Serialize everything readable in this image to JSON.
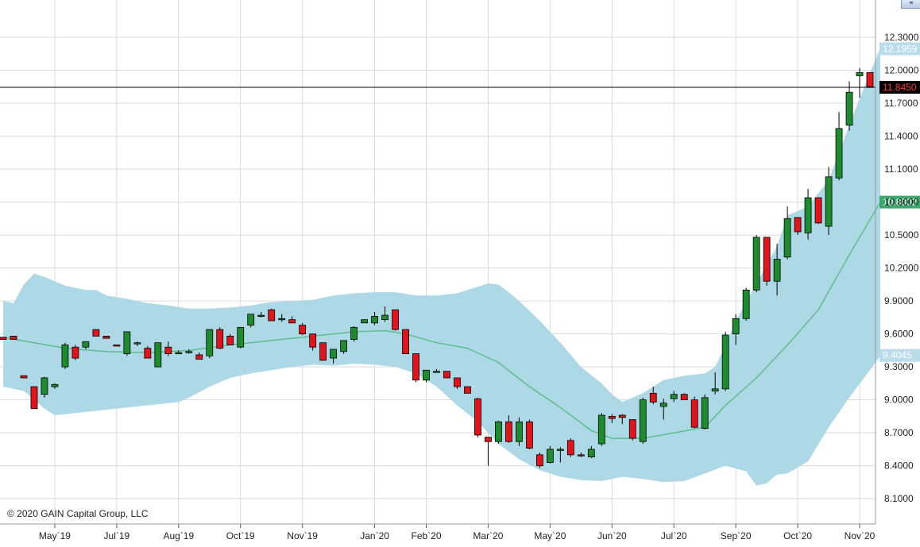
{
  "copyright": "© 2020 GAIN Capital Group, LLC",
  "nav_button": {
    "label": "«",
    "icon": "double-chevron-left-icon"
  },
  "colors": {
    "bull": "#1e8c2e",
    "bear": "#e3121b",
    "band_fill": "#add8e6",
    "middle_line": "#5cbf8a",
    "grid": "#d9d9d9",
    "last_price_line": "#000000"
  },
  "chart_data": {
    "type": "candlestick",
    "indicator": "bollinger-bands",
    "y_ticks": [
      "12.3000",
      "12.0000",
      "11.7000",
      "11.4000",
      "11.1000",
      "10.8000",
      "10.5000",
      "10.2000",
      "9.9000",
      "9.6000",
      "9.3000",
      "9.0000",
      "8.7000",
      "8.4000",
      "8.1000"
    ],
    "y_tick_values": [
      12.3,
      12.0,
      11.7,
      11.4,
      11.1,
      10.8,
      10.5,
      10.2,
      9.9,
      9.6,
      9.3,
      9.0,
      8.7,
      8.4,
      8.1
    ],
    "ylim": [
      7.87,
      12.64
    ],
    "x_labels": [
      "May`19",
      "Jul`19",
      "Aug`19",
      "Oct`19",
      "Nov`19",
      "Jan`20",
      "Feb`20",
      "Mar`20",
      "May`20",
      "Jun`20",
      "Jul`20",
      "Sep`20",
      "Oct`20",
      "Nov`20"
    ],
    "x_label_index": [
      5,
      11,
      17,
      23,
      29,
      36,
      41,
      47,
      53,
      59,
      65,
      71,
      77,
      83
    ],
    "value_markers": [
      {
        "label": "12.1959",
        "value": 12.1959,
        "kind": "upper-band"
      },
      {
        "label": "11.8450",
        "value": 11.845,
        "kind": "last-price"
      },
      {
        "label": "10.8002",
        "value": 10.8002,
        "kind": "middle-band"
      },
      {
        "label": "9.4045",
        "value": 9.4045,
        "kind": "lower-band"
      }
    ],
    "last_price": 11.845,
    "candles": [
      [
        9.57,
        9.57,
        9.55,
        9.55
      ],
      [
        9.58,
        9.58,
        9.55,
        9.55
      ],
      [
        9.22,
        9.22,
        9.2,
        9.2
      ],
      [
        9.12,
        9.12,
        8.92,
        8.92
      ],
      [
        9.05,
        9.21,
        9.02,
        9.2
      ],
      [
        9.12,
        9.15,
        9.1,
        9.14
      ],
      [
        9.3,
        9.52,
        9.28,
        9.5
      ],
      [
        9.48,
        9.5,
        9.36,
        9.38
      ],
      [
        9.48,
        9.53,
        9.46,
        9.53
      ],
      [
        9.64,
        9.64,
        9.58,
        9.58
      ],
      [
        9.58,
        9.58,
        9.56,
        9.56
      ],
      [
        9.5,
        9.5,
        9.49,
        9.49
      ],
      [
        9.42,
        9.62,
        9.4,
        9.62
      ],
      [
        9.52,
        9.53,
        9.49,
        9.52
      ],
      [
        9.47,
        9.49,
        9.38,
        9.38
      ],
      [
        9.3,
        9.52,
        9.3,
        9.52
      ],
      [
        9.48,
        9.53,
        9.4,
        9.42
      ],
      [
        9.42,
        9.45,
        9.42,
        9.43
      ],
      [
        9.44,
        9.46,
        9.42,
        9.44
      ],
      [
        9.41,
        9.43,
        9.37,
        9.37
      ],
      [
        9.4,
        9.64,
        9.38,
        9.64
      ],
      [
        9.64,
        9.66,
        9.46,
        9.47
      ],
      [
        9.58,
        9.6,
        9.5,
        9.5
      ],
      [
        9.48,
        9.66,
        9.47,
        9.66
      ],
      [
        9.68,
        9.78,
        9.66,
        9.78
      ],
      [
        9.76,
        9.8,
        9.75,
        9.77
      ],
      [
        9.82,
        9.83,
        9.72,
        9.72
      ],
      [
        9.74,
        9.78,
        9.71,
        9.74
      ],
      [
        9.73,
        9.76,
        9.7,
        9.7
      ],
      [
        9.68,
        9.7,
        9.59,
        9.6
      ],
      [
        9.6,
        9.6,
        9.45,
        9.48
      ],
      [
        9.52,
        9.52,
        9.36,
        9.36
      ],
      [
        9.38,
        9.46,
        9.33,
        9.46
      ],
      [
        9.44,
        9.54,
        9.42,
        9.54
      ],
      [
        9.55,
        9.67,
        9.53,
        9.66
      ],
      [
        9.7,
        9.73,
        9.7,
        9.73
      ],
      [
        9.7,
        9.8,
        9.68,
        9.76
      ],
      [
        9.73,
        9.85,
        9.71,
        9.77
      ],
      [
        9.82,
        9.82,
        9.63,
        9.64
      ],
      [
        9.64,
        9.64,
        9.42,
        9.42
      ],
      [
        9.42,
        9.42,
        9.16,
        9.18
      ],
      [
        9.18,
        9.27,
        9.16,
        9.27
      ],
      [
        9.26,
        9.28,
        9.25,
        9.26
      ],
      [
        9.26,
        9.26,
        9.2,
        9.2
      ],
      [
        9.2,
        9.2,
        9.1,
        9.12
      ],
      [
        9.12,
        9.12,
        9.06,
        9.06
      ],
      [
        9.01,
        9.02,
        8.66,
        8.68
      ],
      [
        8.66,
        8.66,
        8.4,
        8.62
      ],
      [
        8.62,
        8.81,
        8.6,
        8.8
      ],
      [
        8.8,
        8.86,
        8.61,
        8.62
      ],
      [
        8.62,
        8.84,
        8.58,
        8.8
      ],
      [
        8.8,
        8.82,
        8.55,
        8.56
      ],
      [
        8.5,
        8.52,
        8.38,
        8.4
      ],
      [
        8.43,
        8.58,
        8.42,
        8.55
      ],
      [
        8.55,
        8.57,
        8.43,
        8.55
      ],
      [
        8.63,
        8.65,
        8.48,
        8.5
      ],
      [
        8.5,
        8.52,
        8.48,
        8.49
      ],
      [
        8.48,
        8.58,
        8.47,
        8.55
      ],
      [
        8.6,
        8.88,
        8.58,
        8.86
      ],
      [
        8.85,
        8.87,
        8.79,
        8.83
      ],
      [
        8.86,
        8.87,
        8.78,
        8.84
      ],
      [
        8.82,
        8.82,
        8.63,
        8.65
      ],
      [
        8.62,
        9.02,
        8.6,
        9.0
      ],
      [
        9.06,
        9.12,
        8.96,
        8.98
      ],
      [
        8.94,
        9.01,
        8.82,
        8.97
      ],
      [
        9.01,
        9.08,
        8.98,
        9.05
      ],
      [
        9.05,
        9.06,
        9.0,
        9.0
      ],
      [
        9.0,
        9.03,
        8.74,
        8.75
      ],
      [
        8.74,
        9.05,
        8.73,
        9.02
      ],
      [
        9.08,
        9.25,
        9.05,
        9.1
      ],
      [
        9.1,
        9.62,
        9.08,
        9.59
      ],
      [
        9.6,
        9.78,
        9.5,
        9.74
      ],
      [
        9.74,
        10.02,
        9.72,
        10.0
      ],
      [
        10.0,
        10.5,
        9.98,
        10.48
      ],
      [
        10.48,
        10.48,
        10.04,
        10.08
      ],
      [
        10.08,
        10.42,
        9.95,
        10.28
      ],
      [
        10.3,
        10.76,
        10.28,
        10.65
      ],
      [
        10.66,
        10.66,
        10.5,
        10.53
      ],
      [
        10.52,
        10.92,
        10.46,
        10.84
      ],
      [
        10.84,
        10.84,
        10.6,
        10.61
      ],
      [
        10.58,
        11.12,
        10.5,
        11.03
      ],
      [
        11.02,
        11.62,
        11.0,
        11.47
      ],
      [
        11.5,
        11.9,
        11.45,
        11.8
      ],
      [
        11.95,
        12.02,
        11.75,
        11.98
      ],
      [
        11.98,
        11.98,
        11.84,
        11.85
      ]
    ],
    "middle_band": [
      [
        0,
        9.57
      ],
      [
        3,
        9.52
      ],
      [
        6,
        9.47
      ],
      [
        10,
        9.44
      ],
      [
        14,
        9.43
      ],
      [
        18,
        9.45
      ],
      [
        22,
        9.5
      ],
      [
        26,
        9.54
      ],
      [
        30,
        9.58
      ],
      [
        34,
        9.62
      ],
      [
        37,
        9.63
      ],
      [
        39,
        9.6
      ],
      [
        42,
        9.52
      ],
      [
        45,
        9.47
      ],
      [
        48,
        9.34
      ],
      [
        51,
        9.12
      ],
      [
        54,
        8.93
      ],
      [
        57,
        8.72
      ],
      [
        59,
        8.65
      ],
      [
        62,
        8.65
      ],
      [
        65,
        8.7
      ],
      [
        68,
        8.75
      ],
      [
        70,
        8.95
      ],
      [
        73,
        9.2
      ],
      [
        76,
        9.5
      ],
      [
        79,
        9.82
      ],
      [
        82,
        10.32
      ],
      [
        85,
        10.8
      ]
    ],
    "upper_band": [
      [
        0,
        9.9
      ],
      [
        1,
        9.88
      ],
      [
        2,
        10.05
      ],
      [
        3,
        10.15
      ],
      [
        4,
        10.12
      ],
      [
        5,
        10.08
      ],
      [
        6,
        10.04
      ],
      [
        8,
        10.0
      ],
      [
        9,
        10.0
      ],
      [
        10,
        9.95
      ],
      [
        12,
        9.92
      ],
      [
        14,
        9.88
      ],
      [
        16,
        9.86
      ],
      [
        18,
        9.83
      ],
      [
        20,
        9.83
      ],
      [
        22,
        9.84
      ],
      [
        24,
        9.86
      ],
      [
        26,
        9.89
      ],
      [
        28,
        9.9
      ],
      [
        30,
        9.91
      ],
      [
        32,
        9.95
      ],
      [
        34,
        9.97
      ],
      [
        36,
        9.98
      ],
      [
        38,
        9.98
      ],
      [
        40,
        9.95
      ],
      [
        42,
        9.95
      ],
      [
        44,
        9.97
      ],
      [
        45,
        10.0
      ],
      [
        47,
        10.06
      ],
      [
        48,
        10.05
      ],
      [
        49,
        9.98
      ],
      [
        50,
        9.9
      ],
      [
        52,
        9.72
      ],
      [
        54,
        9.52
      ],
      [
        56,
        9.3
      ],
      [
        58,
        9.15
      ],
      [
        59,
        9.05
      ],
      [
        60,
        8.98
      ],
      [
        62,
        9.06
      ],
      [
        64,
        9.18
      ],
      [
        66,
        9.22
      ],
      [
        68,
        9.24
      ],
      [
        69,
        9.3
      ],
      [
        70,
        9.5
      ],
      [
        71,
        9.72
      ],
      [
        73,
        10.06
      ],
      [
        75,
        10.4
      ],
      [
        76,
        10.68
      ],
      [
        77,
        10.72
      ],
      [
        78,
        10.76
      ],
      [
        80,
        11.0
      ],
      [
        82,
        11.5
      ],
      [
        84,
        11.98
      ],
      [
        85,
        12.2
      ]
    ],
    "lower_band": [
      [
        0,
        9.12
      ],
      [
        2,
        9.08
      ],
      [
        4,
        8.92
      ],
      [
        5,
        8.86
      ],
      [
        7,
        8.88
      ],
      [
        9,
        8.9
      ],
      [
        11,
        8.92
      ],
      [
        13,
        8.94
      ],
      [
        15,
        8.96
      ],
      [
        17,
        8.98
      ],
      [
        18,
        9.02
      ],
      [
        20,
        9.12
      ],
      [
        22,
        9.2
      ],
      [
        24,
        9.24
      ],
      [
        26,
        9.27
      ],
      [
        28,
        9.3
      ],
      [
        30,
        9.32
      ],
      [
        32,
        9.31
      ],
      [
        34,
        9.33
      ],
      [
        36,
        9.32
      ],
      [
        38,
        9.3
      ],
      [
        40,
        9.24
      ],
      [
        42,
        9.12
      ],
      [
        44,
        8.95
      ],
      [
        46,
        8.8
      ],
      [
        48,
        8.6
      ],
      [
        50,
        8.46
      ],
      [
        52,
        8.36
      ],
      [
        54,
        8.3
      ],
      [
        56,
        8.27
      ],
      [
        58,
        8.26
      ],
      [
        60,
        8.3
      ],
      [
        62,
        8.28
      ],
      [
        64,
        8.25
      ],
      [
        66,
        8.26
      ],
      [
        68,
        8.33
      ],
      [
        70,
        8.4
      ],
      [
        72,
        8.35
      ],
      [
        73,
        8.22
      ],
      [
        74,
        8.24
      ],
      [
        75,
        8.32
      ],
      [
        76,
        8.33
      ],
      [
        78,
        8.44
      ],
      [
        80,
        8.75
      ],
      [
        82,
        9.02
      ],
      [
        84,
        9.27
      ],
      [
        85,
        9.4
      ]
    ]
  }
}
